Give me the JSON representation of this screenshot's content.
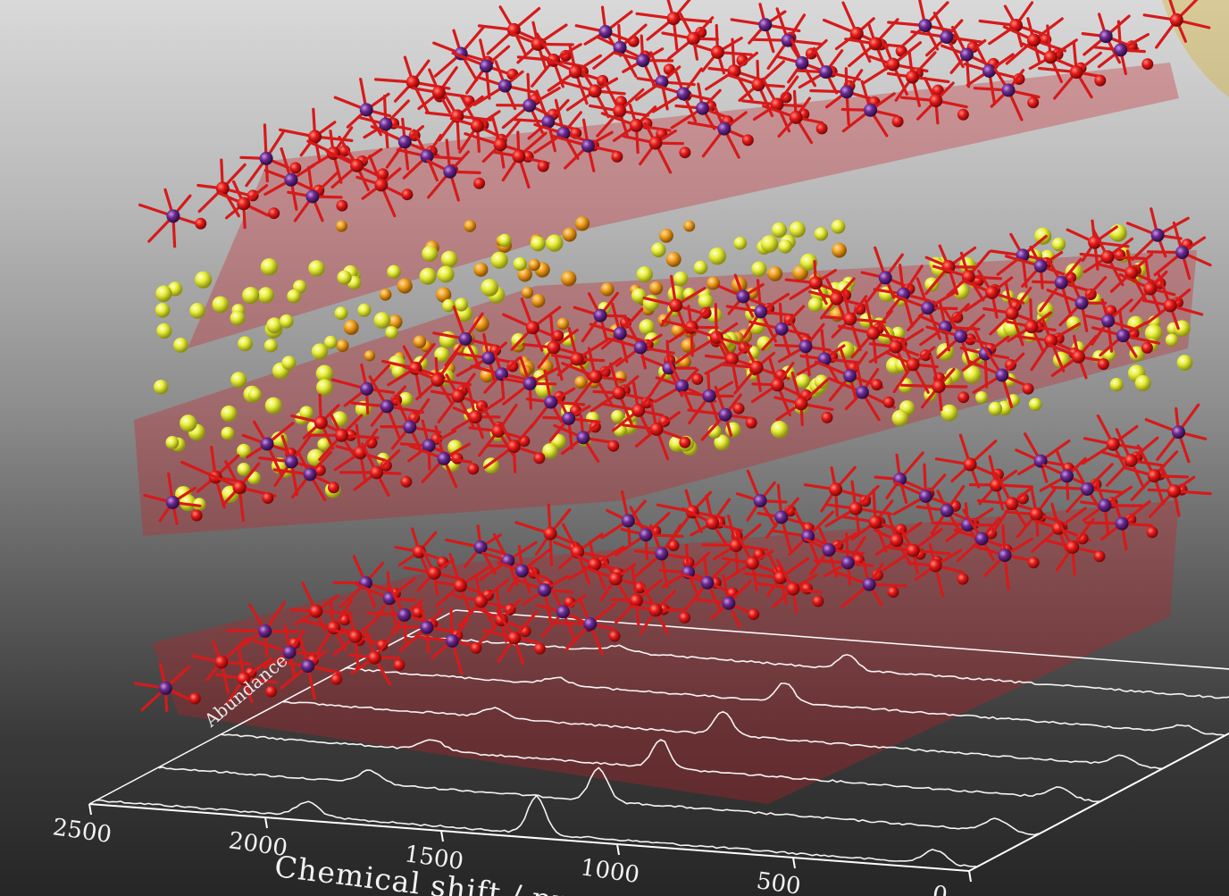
{
  "figure": {
    "colors": {
      "background_top": "#d9d9d9",
      "background_bottom": "#262626",
      "framework_bond": "#d61a1a",
      "framework_atom": "#e01818",
      "center_atom": "#6b2a8f",
      "guest_atom": "#e8ef3a",
      "guest_atom_orange": "#f0a020",
      "layer_plane": "#c81e28",
      "spectrum_line": "#ffffff",
      "sun_glow": "#f5d000"
    },
    "spectrum": {
      "x_axis_label": "Chemical shift / ppm",
      "y_axis_label": "Abundance",
      "x_ticks": [
        "2500",
        "2000",
        "1500",
        "1000",
        "500",
        "0"
      ],
      "x_range": [
        2500,
        0
      ],
      "trace_count": 6,
      "peaks_ppm": [
        1900,
        1250,
        120
      ]
    }
  }
}
